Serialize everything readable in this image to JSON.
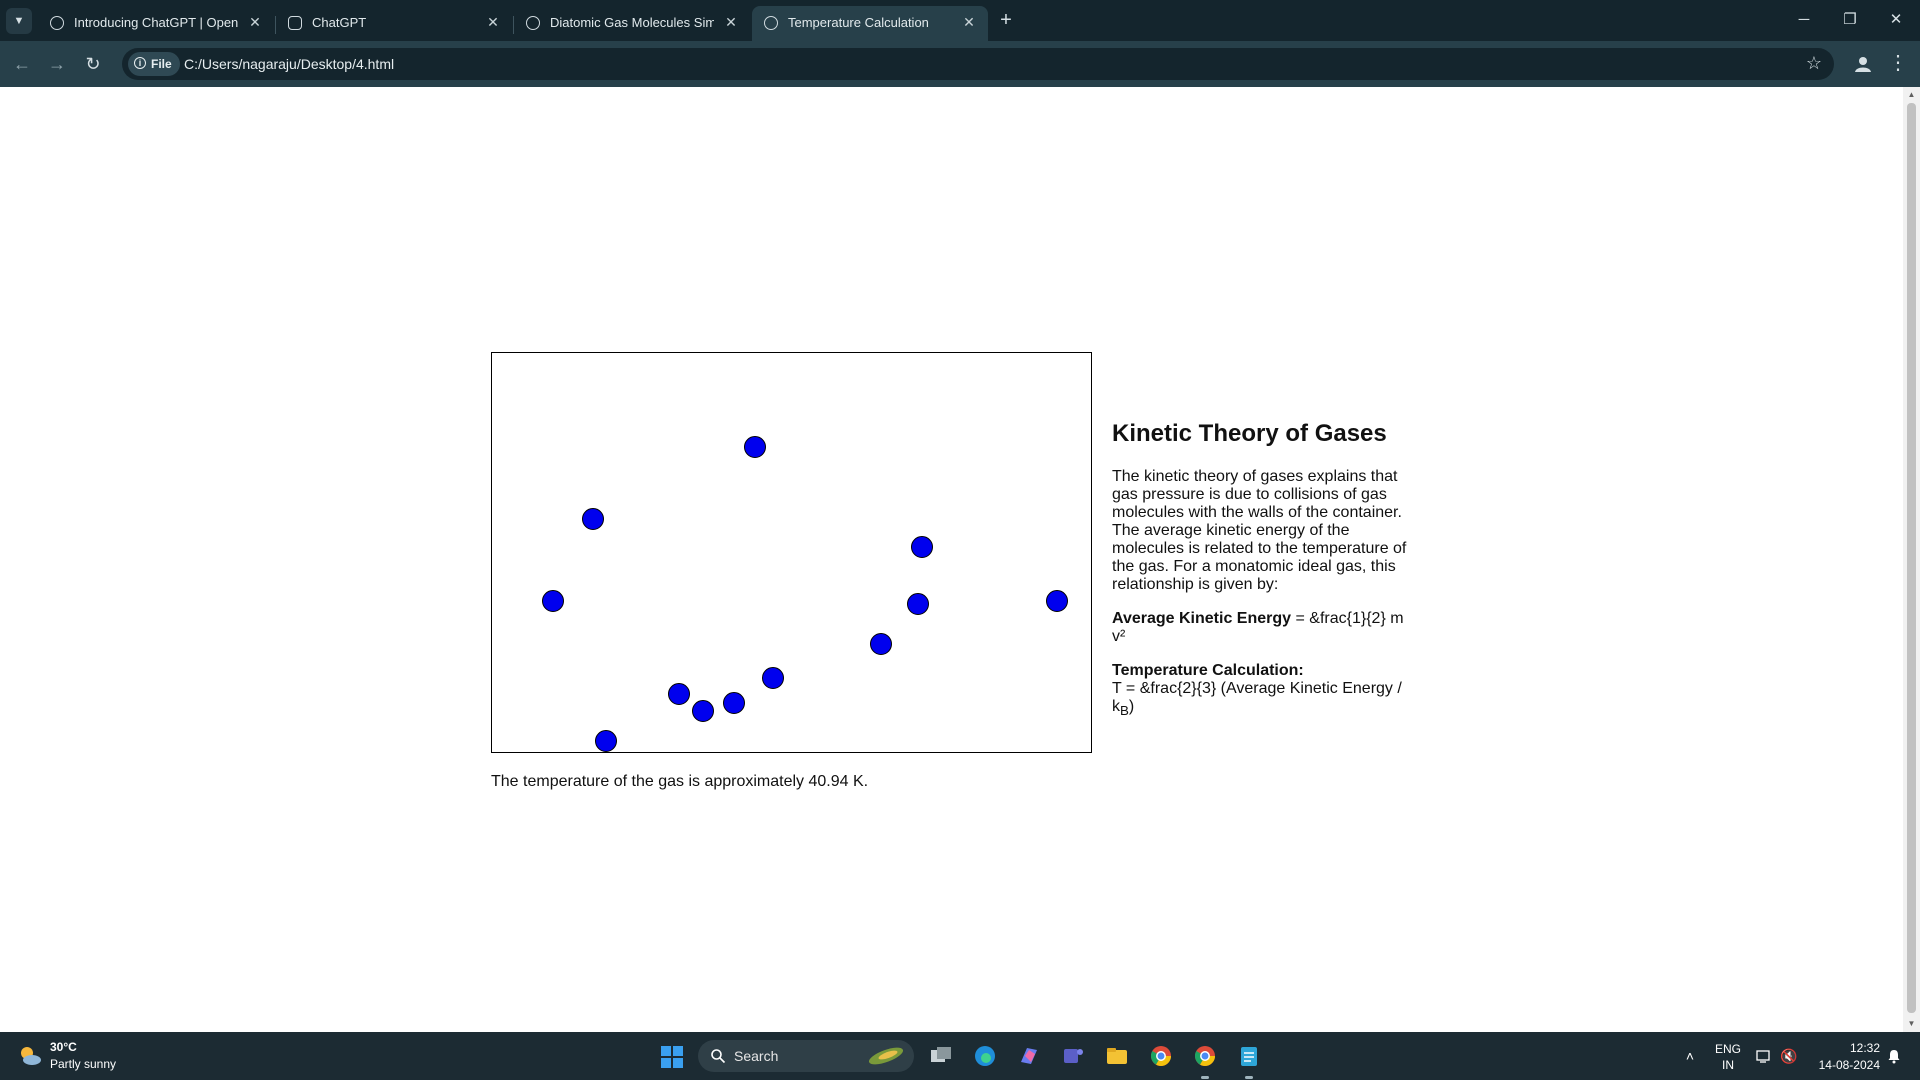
{
  "browser": {
    "tabs": [
      {
        "title": "Introducing ChatGPT | OpenAI",
        "active": false,
        "icon": "openai-icon"
      },
      {
        "title": "ChatGPT",
        "active": false,
        "icon": "chatgpt-icon"
      },
      {
        "title": "Diatomic Gas Molecules Simula",
        "active": false,
        "icon": "globe-icon"
      },
      {
        "title": "Temperature Calculation",
        "active": true,
        "icon": "globe-icon"
      }
    ],
    "address": {
      "scheme_label": "File",
      "url": "C:/Users/nagaraju/Desktop/4.html"
    }
  },
  "page": {
    "simulation": {
      "molecule_color": "#0000ee",
      "molecule_count": 12
    },
    "temperature_text": "The temperature of the gas is approximately 40.94 K.",
    "info": {
      "title": "Kinetic Theory of Gases",
      "description": "The kinetic theory of gases explains that gas pressure is due to collisions of gas molecules with the walls of the container. The average kinetic energy of the molecules is related to the temperature of the gas. For a monatomic ideal gas, this relationship is given by:",
      "ke_label": "Average Kinetic Energy",
      "ke_formula": " = &frac{1}{2} m v²",
      "temp_label": "Temperature Calculation:",
      "temp_formula": "T = &frac{2}{3} (Average Kinetic Energy / k",
      "temp_formula_sub": "B",
      "temp_formula_end": ")"
    }
  },
  "taskbar": {
    "weather": {
      "temp": "30°C",
      "condition": "Partly sunny"
    },
    "search_placeholder": "Search",
    "lang": {
      "line1": "ENG",
      "line2": "IN"
    },
    "clock": {
      "time": "12:32",
      "date": "14-08-2024"
    }
  }
}
